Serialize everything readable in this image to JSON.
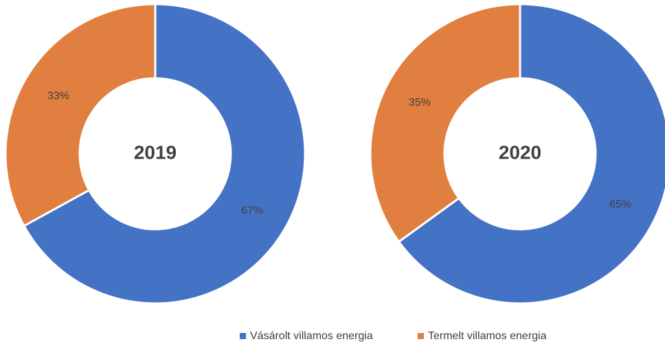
{
  "chart_data": {
    "type": "pie",
    "donut": true,
    "categories": [
      "Vásárolt villamos energia",
      "Termelt villamos energia"
    ],
    "colors": [
      "#4472c4",
      "#e07f3f"
    ],
    "charts": [
      {
        "title": "2019",
        "values": [
          67,
          33
        ],
        "value_labels": [
          "67%",
          "33%"
        ]
      },
      {
        "title": "2020",
        "values": [
          65,
          35
        ],
        "value_labels": [
          "65%",
          "35%"
        ]
      }
    ]
  }
}
